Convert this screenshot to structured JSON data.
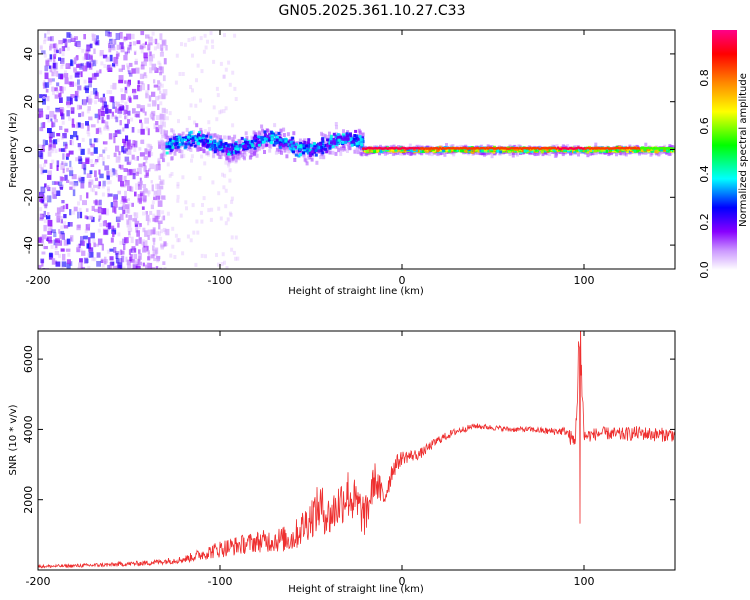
{
  "title": "GN05.2025.361.10.27.C33",
  "chart_data": [
    {
      "type": "heatmap",
      "title": "GN05.2025.361.10.27.C33",
      "xlabel": "Height of straight line (km)",
      "ylabel": "Frequency (Hz)",
      "xlim": [
        -200,
        150
      ],
      "ylim": [
        -50,
        50
      ],
      "xticks": [
        "-200",
        "-100",
        "0",
        "100"
      ],
      "yticks": [
        "-40",
        "-20",
        "0",
        "20",
        "40"
      ],
      "colorbar": {
        "label": "Normalized spectral amplitude",
        "range": [
          0,
          1
        ],
        "ticks": [
          "0.0",
          "0.2",
          "0.4",
          "0.6",
          "0.8"
        ],
        "colors": [
          "#e8dcff",
          "#8800ff",
          "#0000ff",
          "#00ffff",
          "#00ff00",
          "#ffff00",
          "#ff8800",
          "#ff0000",
          "#ff0088"
        ]
      },
      "regions": [
        {
          "x_range": [
            -200,
            -130
          ],
          "freq_spread": 50,
          "amplitude": 0.1,
          "description": "scattered noise"
        },
        {
          "x_range": [
            -130,
            -22
          ],
          "freq_center": 3,
          "freq_spread": 10,
          "amplitude": 0.45
        },
        {
          "x_range": [
            -22,
            150
          ],
          "freq_center": 0.5,
          "freq_spread": 3,
          "amplitude": 0.9
        }
      ]
    },
    {
      "type": "line",
      "xlabel": "Height of straight line (km)",
      "ylabel": "SNR (10 * v/v)",
      "xlim": [
        -200,
        150
      ],
      "ylim": [
        0,
        6800
      ],
      "xticks": [
        "-200",
        "-100",
        "0",
        "100"
      ],
      "yticks": [
        "2000",
        "4000",
        "6000"
      ],
      "color": "#ee3030",
      "series": [
        {
          "name": "SNR",
          "x": [
            -200,
            -180,
            -160,
            -140,
            -120,
            -100,
            -80,
            -60,
            -45,
            -40,
            -30,
            -20,
            -15,
            -10,
            -5,
            0,
            10,
            20,
            30,
            40,
            50,
            60,
            70,
            80,
            90,
            95,
            98,
            100,
            110,
            120,
            130,
            140,
            150
          ],
          "y": [
            100,
            120,
            150,
            200,
            300,
            600,
            800,
            900,
            1800,
            1500,
            2200,
            1500,
            2600,
            2000,
            2900,
            3200,
            3300,
            3700,
            3950,
            4100,
            4050,
            4000,
            4000,
            3950,
            3950,
            3600,
            6800,
            3800,
            3900,
            3850,
            3900,
            3850,
            3850
          ],
          "spread": [
            80,
            100,
            120,
            150,
            200,
            500,
            600,
            800,
            1400,
            1200,
            1500,
            1200,
            1000,
            800,
            600,
            400,
            300,
            250,
            200,
            150,
            150,
            150,
            150,
            200,
            250,
            600,
            1200,
            400,
            350,
            400,
            400,
            400,
            400
          ]
        }
      ]
    }
  ]
}
